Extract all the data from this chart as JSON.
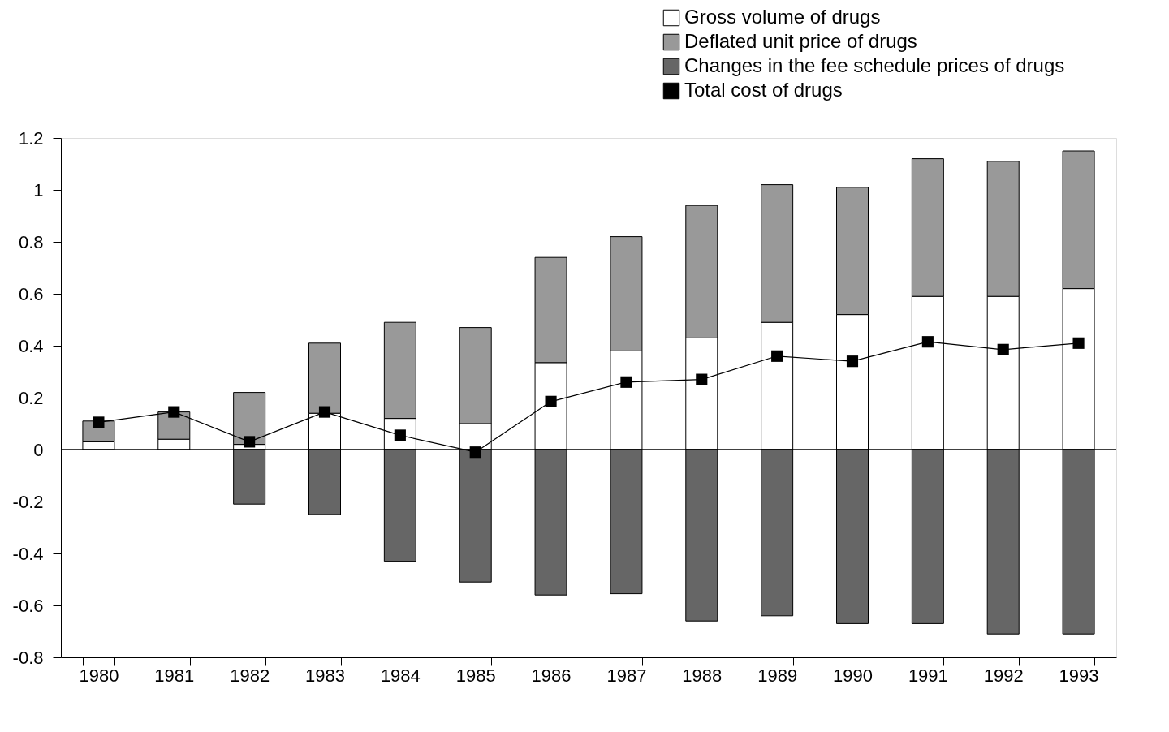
{
  "chart_data": {
    "type": "bar",
    "stacked": true,
    "categories": [
      "1980",
      "1981",
      "1982",
      "1983",
      "1984",
      "1985",
      "1986",
      "1987",
      "1988",
      "1989",
      "1990",
      "1991",
      "1992",
      "1993"
    ],
    "series": [
      {
        "name": "Gross volume of drugs",
        "color": "#ffffff",
        "values": [
          0.03,
          0.04,
          0.02,
          0.14,
          0.12,
          0.1,
          0.335,
          0.38,
          0.43,
          0.49,
          0.52,
          0.59,
          0.59,
          0.62
        ]
      },
      {
        "name": "Deflated unit price of drugs",
        "color": "#999999",
        "values": [
          0.08,
          0.105,
          0.2,
          0.27,
          0.37,
          0.37,
          0.405,
          0.44,
          0.51,
          0.53,
          0.49,
          0.53,
          0.52,
          0.53
        ]
      },
      {
        "name": "Changes in the fee schedule prices of drugs",
        "color": "#666666",
        "values": [
          null,
          null,
          -0.21,
          -0.25,
          -0.43,
          -0.51,
          -0.56,
          -0.555,
          -0.66,
          -0.64,
          -0.67,
          -0.67,
          -0.71,
          -0.71
        ]
      },
      {
        "name": "Total cost of drugs",
        "type": "line",
        "color": "#000000",
        "marker": "square",
        "values": [
          0.105,
          0.145,
          0.03,
          0.145,
          0.055,
          -0.01,
          0.185,
          0.26,
          0.27,
          0.36,
          0.34,
          0.415,
          0.385,
          0.41
        ]
      }
    ],
    "ylim": [
      -0.8,
      1.2
    ],
    "yticks": [
      -0.8,
      -0.6,
      -0.4,
      -0.2,
      0,
      0.2,
      0.4,
      0.6,
      0.8,
      1,
      1.2
    ],
    "ref_lines": [
      {
        "axis": "y",
        "value": 0,
        "color": "#000000"
      }
    ],
    "grid": false,
    "legend": "top right"
  }
}
